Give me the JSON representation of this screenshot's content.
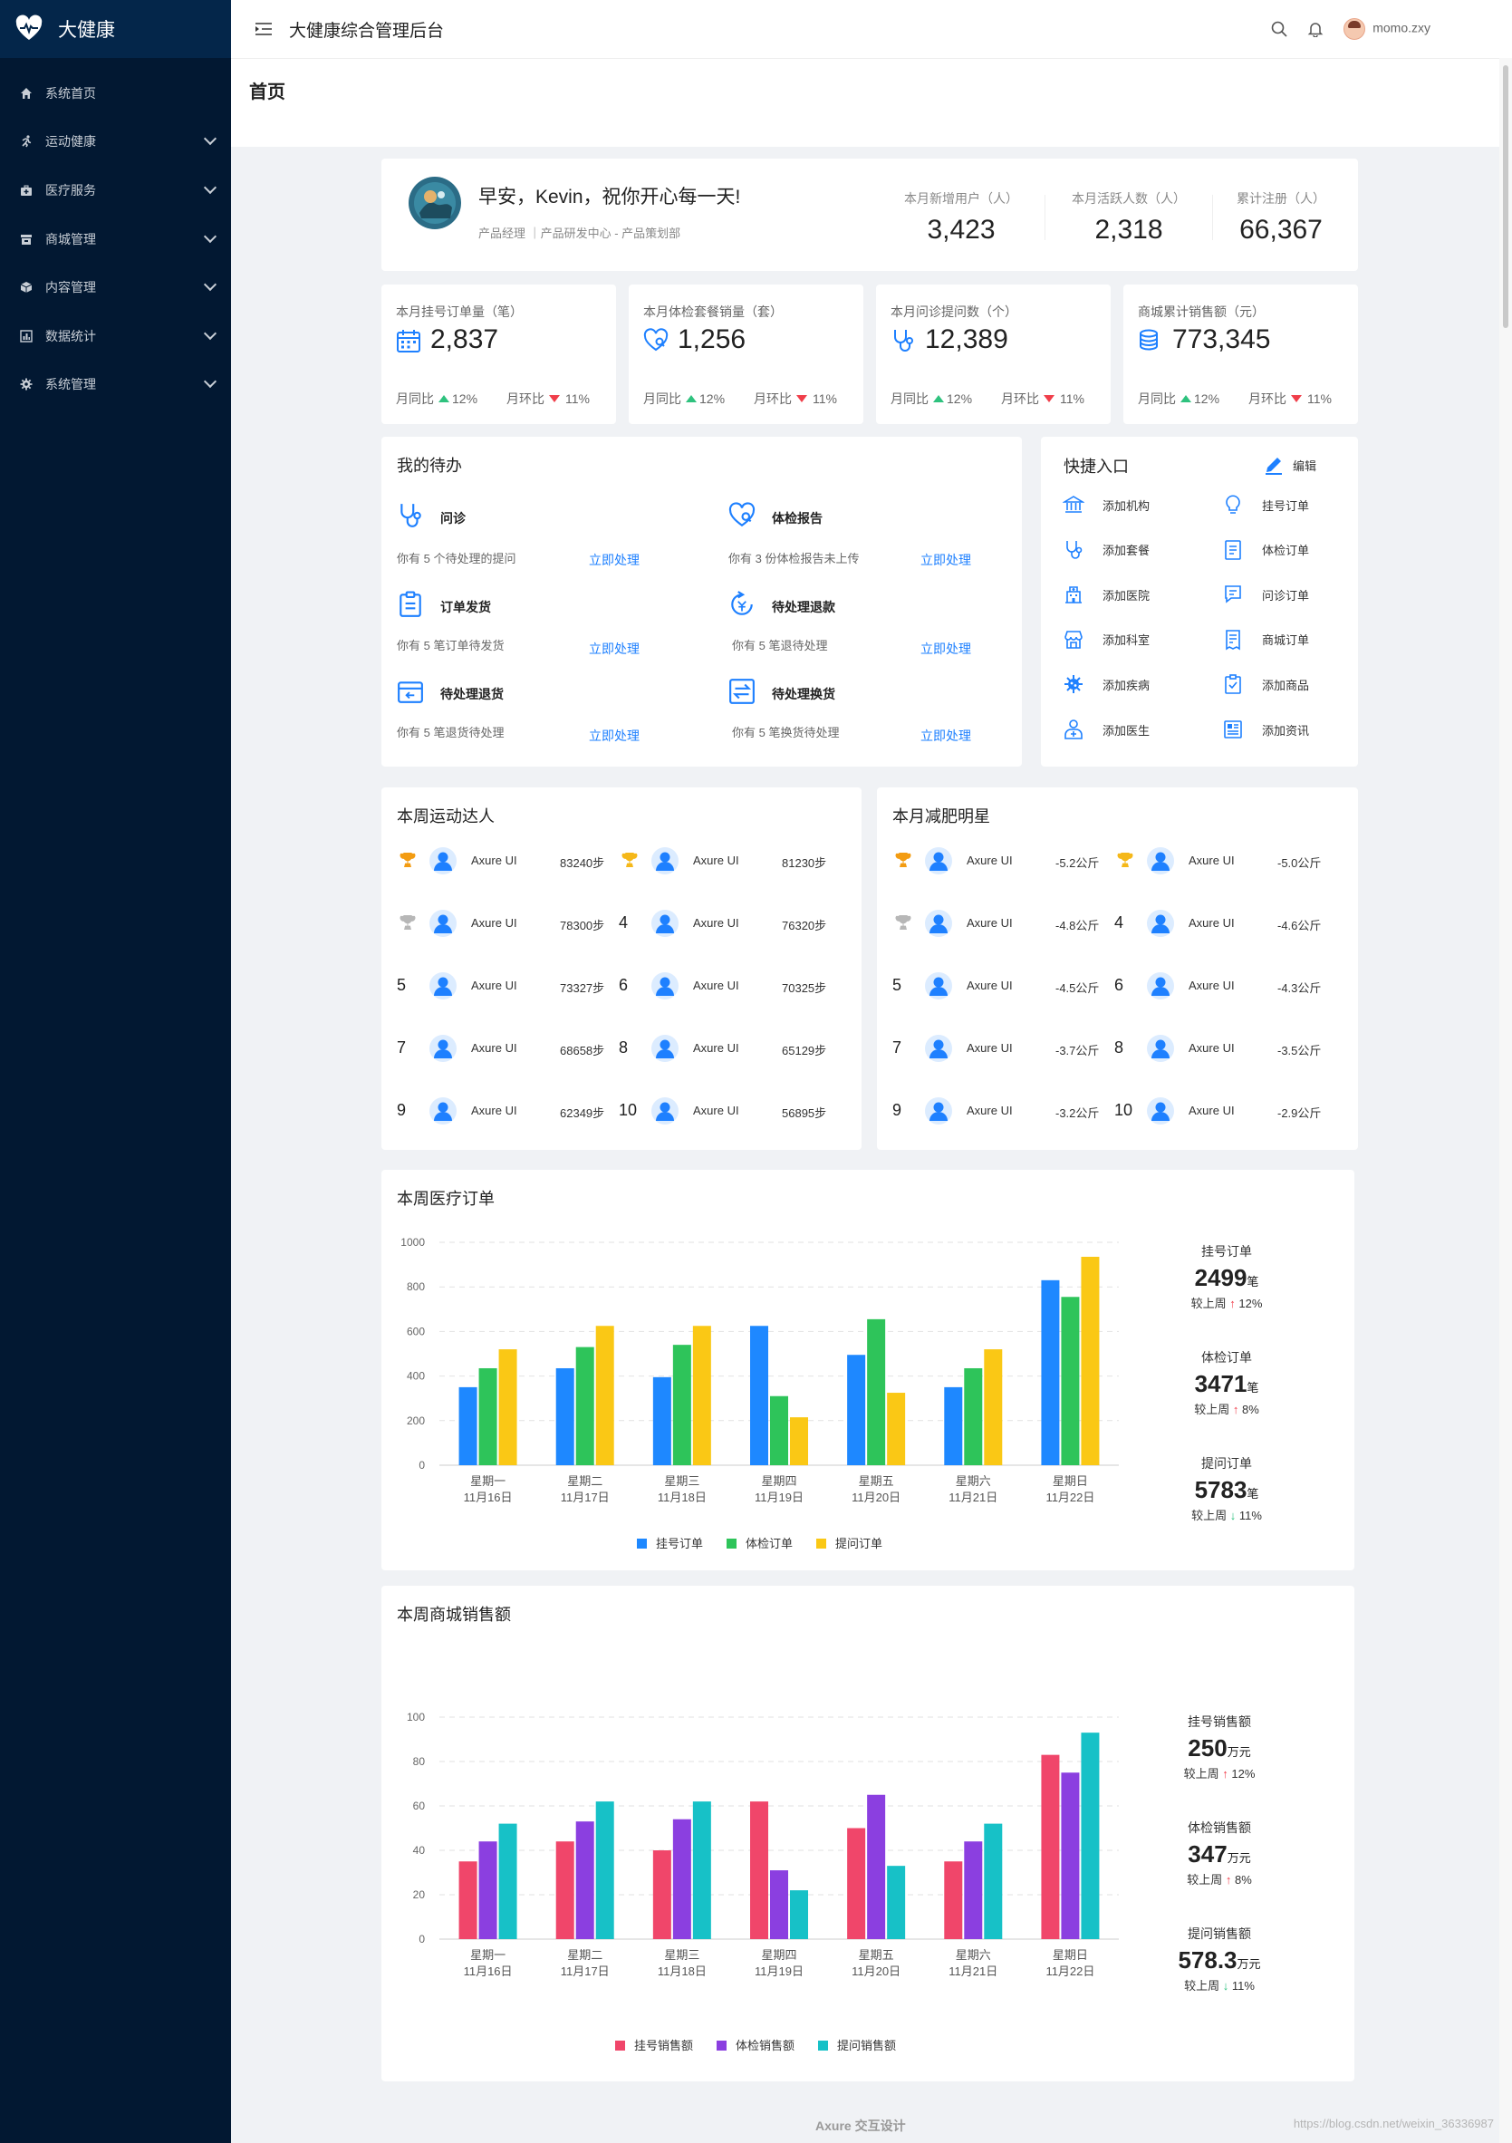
{
  "app": {
    "brand": "大健康",
    "title": "大健康综合管理后台",
    "user": "momo.zxy"
  },
  "page": {
    "title": "首页"
  },
  "sidebar": {
    "items": [
      {
        "label": "系统首页",
        "icon": "home-icon",
        "expandable": false
      },
      {
        "label": "运动健康",
        "icon": "run-icon",
        "expandable": true
      },
      {
        "label": "医疗服务",
        "icon": "medkit-icon",
        "expandable": true
      },
      {
        "label": "商城管理",
        "icon": "shop-icon",
        "expandable": true
      },
      {
        "label": "内容管理",
        "icon": "cube-icon",
        "expandable": true
      },
      {
        "label": "数据统计",
        "icon": "chart-icon",
        "expandable": true
      },
      {
        "label": "系统管理",
        "icon": "gear-icon",
        "expandable": true
      }
    ]
  },
  "welcome": {
    "greeting": "早安，Kevin，祝你开心每一天!",
    "role": "产品经理 ｜产品研发中心 - 产品策划部",
    "stats": [
      {
        "label": "本月新增用户（人）",
        "value": "3,423"
      },
      {
        "label": "本月活跃人数（人）",
        "value": "2,318"
      },
      {
        "label": "累计注册（人）",
        "value": "66,367"
      }
    ]
  },
  "kpis": [
    {
      "label": "本月挂号订单量（笔）",
      "value": "2,837",
      "icon": "calendar-icon",
      "yoy_label": "月同比",
      "yoy": "12%",
      "mom_label": "月环比",
      "mom": "11%"
    },
    {
      "label": "本月体检套餐销量（套）",
      "value": "1,256",
      "icon": "heart-check-icon",
      "yoy_label": "月同比",
      "yoy": "12%",
      "mom_label": "月环比",
      "mom": "11%"
    },
    {
      "label": "本月问诊提问数（个）",
      "value": "12,389",
      "icon": "stethoscope-icon",
      "yoy_label": "月同比",
      "yoy": "12%",
      "mom_label": "月环比",
      "mom": "11%"
    },
    {
      "label": "商城累计销售额（元）",
      "value": "773,345",
      "icon": "coins-icon",
      "yoy_label": "月同比",
      "yoy": "12%",
      "mom_label": "月环比",
      "mom": "11%"
    }
  ],
  "todo": {
    "title": "我的待办",
    "items": [
      {
        "name": "问诊",
        "desc": "你有 5 个待处理的提问",
        "action": "立即处理",
        "icon": "stethoscope-icon"
      },
      {
        "name": "体检报告",
        "desc": "你有 3 份体检报告未上传",
        "action": "立即处理",
        "icon": "heart-check-icon"
      },
      {
        "name": "订单发货",
        "desc": "你有 5 笔订单待发货",
        "action": "立即处理",
        "icon": "clipboard-icon"
      },
      {
        "name": "待处理退款",
        "desc": "你有 5 笔退待处理",
        "action": "立即处理",
        "icon": "refund-icon"
      },
      {
        "name": "待处理退货",
        "desc": "你有 5 笔退货待处理",
        "action": "立即处理",
        "icon": "return-box-icon"
      },
      {
        "name": "待处理换货",
        "desc": "你有 5 笔换货待处理",
        "action": "立即处理",
        "icon": "exchange-icon"
      }
    ]
  },
  "quick": {
    "title": "快捷入口",
    "edit": "编辑",
    "items": [
      {
        "label": "添加机构",
        "icon": "bank-icon"
      },
      {
        "label": "挂号订单",
        "icon": "bulb-icon"
      },
      {
        "label": "添加套餐",
        "icon": "stethoscope-icon"
      },
      {
        "label": "体检订单",
        "icon": "list-icon"
      },
      {
        "label": "添加医院",
        "icon": "hospital-icon"
      },
      {
        "label": "问诊订单",
        "icon": "chat-doc-icon"
      },
      {
        "label": "添加科室",
        "icon": "store-icon"
      },
      {
        "label": "商城订单",
        "icon": "receipt-icon"
      },
      {
        "label": "添加疾病",
        "icon": "virus-icon"
      },
      {
        "label": "添加商品",
        "icon": "clipboard-check-icon"
      },
      {
        "label": "添加医生",
        "icon": "doctor-icon"
      },
      {
        "label": "添加资讯",
        "icon": "news-icon"
      }
    ]
  },
  "sport": {
    "title": "本周运动达人",
    "rows": [
      {
        "rank": "gold-trophy-icon",
        "name": "Axure UI",
        "value": "83240步"
      },
      {
        "rank": "gold-trophy-icon",
        "name": "Axure UI",
        "value": "81230步"
      },
      {
        "rank": "silver-trophy-icon",
        "name": "Axure UI",
        "value": "78300步"
      },
      {
        "rank": "4",
        "name": "Axure UI",
        "value": "76320步"
      },
      {
        "rank": "5",
        "name": "Axure UI",
        "value": "73327步"
      },
      {
        "rank": "6",
        "name": "Axure UI",
        "value": "70325步"
      },
      {
        "rank": "7",
        "name": "Axure UI",
        "value": "68658步"
      },
      {
        "rank": "8",
        "name": "Axure UI",
        "value": "65129步"
      },
      {
        "rank": "9",
        "name": "Axure UI",
        "value": "62349步"
      },
      {
        "rank": "10",
        "name": "Axure UI",
        "value": "56895步"
      }
    ]
  },
  "weight": {
    "title": "本月减肥明星",
    "rows": [
      {
        "rank": "gold-trophy-icon",
        "name": "Axure UI",
        "value": "-5.2公斤"
      },
      {
        "rank": "gold-trophy-icon",
        "name": "Axure UI",
        "value": "-5.0公斤"
      },
      {
        "rank": "silver-trophy-icon",
        "name": "Axure UI",
        "value": "-4.8公斤"
      },
      {
        "rank": "4",
        "name": "Axure UI",
        "value": "-4.6公斤"
      },
      {
        "rank": "5",
        "name": "Axure UI",
        "value": "-4.5公斤"
      },
      {
        "rank": "6",
        "name": "Axure UI",
        "value": "-4.3公斤"
      },
      {
        "rank": "7",
        "name": "Axure UI",
        "value": "-3.7公斤"
      },
      {
        "rank": "8",
        "name": "Axure UI",
        "value": "-3.5公斤"
      },
      {
        "rank": "9",
        "name": "Axure UI",
        "value": "-3.2公斤"
      },
      {
        "rank": "10",
        "name": "Axure UI",
        "value": "-2.9公斤"
      }
    ]
  },
  "chart_data": [
    {
      "type": "bar",
      "title": "本周医疗订单",
      "categories": [
        "星期一",
        "星期二",
        "星期三",
        "星期四",
        "星期五",
        "星期六",
        "星期日"
      ],
      "dates": [
        "11月16日",
        "11月17日",
        "11月18日",
        "11月19日",
        "11月20日",
        "11月21日",
        "11月22日"
      ],
      "ylim": [
        0,
        1000
      ],
      "yticks": [
        0,
        200,
        400,
        600,
        800,
        1000
      ],
      "grid": true,
      "legend": "bottom",
      "series": [
        {
          "name": "挂号订单",
          "color": "#1e88ff",
          "values": [
            350,
            435,
            395,
            625,
            495,
            350,
            830
          ]
        },
        {
          "name": "体检订单",
          "color": "#2ec45a",
          "values": [
            435,
            530,
            540,
            310,
            655,
            435,
            755
          ]
        },
        {
          "name": "提问订单",
          "color": "#fac815",
          "values": [
            520,
            625,
            625,
            215,
            325,
            520,
            935
          ]
        }
      ],
      "summary": [
        {
          "label": "挂号订单",
          "value": "2499",
          "unit": "笔",
          "cmp": "较上周",
          "dir": "up",
          "pct": "12%"
        },
        {
          "label": "体检订单",
          "value": "3471",
          "unit": "笔",
          "cmp": "较上周",
          "dir": "up",
          "pct": "8%"
        },
        {
          "label": "提问订单",
          "value": "5783",
          "unit": "笔",
          "cmp": "较上周",
          "dir": "down",
          "pct": "11%"
        }
      ]
    },
    {
      "type": "bar",
      "title": "本周商城销售额",
      "categories": [
        "星期一",
        "星期二",
        "星期三",
        "星期四",
        "星期五",
        "星期六",
        "星期日"
      ],
      "dates": [
        "11月16日",
        "11月17日",
        "11月18日",
        "11月19日",
        "11月20日",
        "11月21日",
        "11月22日"
      ],
      "ylim": [
        0,
        100
      ],
      "yticks": [
        0,
        20,
        40,
        60,
        80,
        100
      ],
      "grid": true,
      "legend": "bottom",
      "series": [
        {
          "name": "挂号销售额",
          "color": "#f0466a",
          "values": [
            35,
            44,
            40,
            62,
            50,
            35,
            83
          ]
        },
        {
          "name": "体检销售额",
          "color": "#8b3fe0",
          "values": [
            44,
            53,
            54,
            31,
            65,
            44,
            75
          ]
        },
        {
          "name": "提问销售额",
          "color": "#17c1c7",
          "values": [
            52,
            62,
            62,
            22,
            33,
            52,
            93
          ]
        }
      ],
      "summary": [
        {
          "label": "挂号销售额",
          "value": "250",
          "unit": "万元",
          "cmp": "较上周",
          "dir": "up",
          "pct": "12%"
        },
        {
          "label": "体检销售额",
          "value": "347",
          "unit": "万元",
          "cmp": "较上周",
          "dir": "up",
          "pct": "8%"
        },
        {
          "label": "提问销售额",
          "value": "578.3",
          "unit": "万元",
          "cmp": "较上周",
          "dir": "down",
          "pct": "11%"
        }
      ]
    }
  ],
  "footer": {
    "text": "Axure 交互设计",
    "watermark": "https://blog.csdn.net/weixin_36336987"
  },
  "colors": {
    "sidebar": "#021832",
    "brand_bar": "#04264a",
    "accent": "#1e80ff",
    "up": "#2ec27e",
    "down": "#f03e4a"
  }
}
